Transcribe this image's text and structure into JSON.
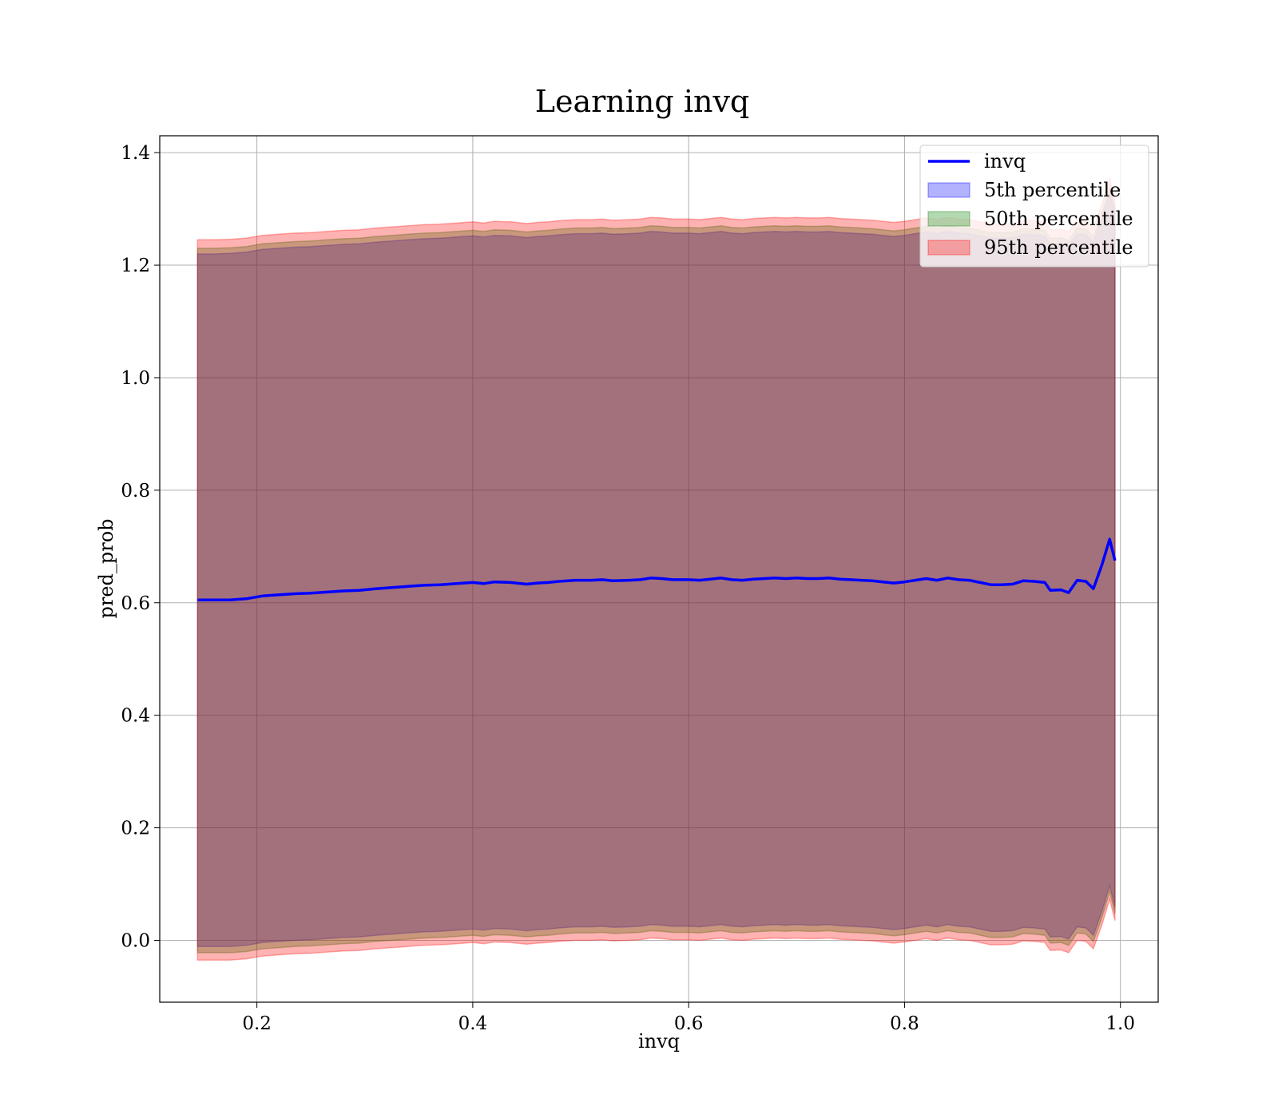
{
  "chart_data": {
    "type": "area",
    "title": "Learning invq",
    "xlabel": "invq",
    "ylabel": "pred_prob",
    "xlim": [
      0.11,
      1.035
    ],
    "ylim": [
      -0.11,
      1.43
    ],
    "grid": true,
    "legend_position": "top-right",
    "x_ticks": [
      {
        "value": 0.2,
        "label": "0.2"
      },
      {
        "value": 0.4,
        "label": "0.4"
      },
      {
        "value": 0.6,
        "label": "0.6"
      },
      {
        "value": 0.8,
        "label": "0.8"
      },
      {
        "value": 1.0,
        "label": "1.0"
      }
    ],
    "y_ticks": [
      {
        "value": 0.0,
        "label": "0.0"
      },
      {
        "value": 0.2,
        "label": "0.2"
      },
      {
        "value": 0.4,
        "label": "0.4"
      },
      {
        "value": 0.6,
        "label": "0.6"
      },
      {
        "value": 0.8,
        "label": "0.8"
      },
      {
        "value": 1.0,
        "label": "1.0"
      },
      {
        "value": 1.2,
        "label": "1.2"
      },
      {
        "value": 1.4,
        "label": "1.4"
      }
    ],
    "x": [
      0.145,
      0.16,
      0.175,
      0.19,
      0.205,
      0.22,
      0.235,
      0.25,
      0.265,
      0.28,
      0.295,
      0.31,
      0.325,
      0.34,
      0.355,
      0.37,
      0.385,
      0.4,
      0.41,
      0.42,
      0.435,
      0.45,
      0.46,
      0.47,
      0.48,
      0.495,
      0.51,
      0.52,
      0.53,
      0.545,
      0.555,
      0.565,
      0.575,
      0.585,
      0.6,
      0.61,
      0.62,
      0.63,
      0.64,
      0.65,
      0.66,
      0.67,
      0.68,
      0.69,
      0.7,
      0.71,
      0.72,
      0.73,
      0.74,
      0.75,
      0.76,
      0.77,
      0.78,
      0.79,
      0.8,
      0.81,
      0.82,
      0.83,
      0.84,
      0.85,
      0.86,
      0.87,
      0.88,
      0.89,
      0.9,
      0.91,
      0.92,
      0.93,
      0.935,
      0.945,
      0.952,
      0.96,
      0.968,
      0.975,
      0.983,
      0.99,
      0.995
    ],
    "series": [
      {
        "name": "invq",
        "color": "#0000ff",
        "role": "line",
        "values": [
          0.605,
          0.605,
          0.605,
          0.607,
          0.612,
          0.614,
          0.616,
          0.617,
          0.619,
          0.621,
          0.622,
          0.625,
          0.627,
          0.629,
          0.631,
          0.632,
          0.634,
          0.636,
          0.634,
          0.637,
          0.636,
          0.633,
          0.635,
          0.636,
          0.638,
          0.64,
          0.64,
          0.641,
          0.639,
          0.64,
          0.641,
          0.644,
          0.643,
          0.641,
          0.641,
          0.64,
          0.642,
          0.644,
          0.641,
          0.64,
          0.642,
          0.643,
          0.644,
          0.643,
          0.644,
          0.643,
          0.643,
          0.644,
          0.642,
          0.641,
          0.64,
          0.639,
          0.637,
          0.635,
          0.637,
          0.64,
          0.643,
          0.64,
          0.644,
          0.641,
          0.64,
          0.636,
          0.632,
          0.632,
          0.633,
          0.639,
          0.638,
          0.636,
          0.622,
          0.623,
          0.618,
          0.64,
          0.638,
          0.625,
          0.668,
          0.713,
          0.675
        ]
      },
      {
        "name": "5th percentile",
        "color": "#0000ff",
        "role": "band",
        "upper": [
          1.22,
          1.22,
          1.221,
          1.223,
          1.228,
          1.23,
          1.232,
          1.233,
          1.235,
          1.237,
          1.238,
          1.241,
          1.243,
          1.245,
          1.247,
          1.248,
          1.25,
          1.252,
          1.25,
          1.253,
          1.252,
          1.249,
          1.251,
          1.252,
          1.254,
          1.256,
          1.256,
          1.257,
          1.255,
          1.256,
          1.257,
          1.26,
          1.259,
          1.257,
          1.257,
          1.256,
          1.258,
          1.26,
          1.257,
          1.256,
          1.258,
          1.259,
          1.26,
          1.259,
          1.26,
          1.259,
          1.259,
          1.26,
          1.258,
          1.257,
          1.256,
          1.255,
          1.253,
          1.251,
          1.253,
          1.256,
          1.259,
          1.256,
          1.26,
          1.257,
          1.256,
          1.252,
          1.248,
          1.248,
          1.249,
          1.255,
          1.254,
          1.252,
          1.238,
          1.239,
          1.234,
          1.256,
          1.254,
          1.241,
          1.284,
          1.329,
          1.291
        ],
        "lower": [
          -0.011,
          -0.011,
          -0.011,
          -0.009,
          -0.004,
          -0.002,
          0.0,
          0.001,
          0.003,
          0.005,
          0.006,
          0.009,
          0.011,
          0.013,
          0.015,
          0.016,
          0.018,
          0.02,
          0.018,
          0.021,
          0.02,
          0.017,
          0.019,
          0.02,
          0.022,
          0.024,
          0.024,
          0.025,
          0.023,
          0.024,
          0.025,
          0.028,
          0.027,
          0.025,
          0.025,
          0.024,
          0.026,
          0.028,
          0.025,
          0.024,
          0.026,
          0.027,
          0.028,
          0.027,
          0.028,
          0.027,
          0.027,
          0.028,
          0.026,
          0.025,
          0.024,
          0.023,
          0.021,
          0.019,
          0.021,
          0.024,
          0.027,
          0.024,
          0.028,
          0.025,
          0.024,
          0.02,
          0.016,
          0.016,
          0.017,
          0.023,
          0.022,
          0.02,
          0.006,
          0.007,
          0.002,
          0.024,
          0.022,
          0.009,
          0.052,
          0.097,
          0.059
        ]
      },
      {
        "name": "50th percentile",
        "color": "#008000",
        "role": "band",
        "upper": [
          1.23,
          1.23,
          1.231,
          1.233,
          1.238,
          1.24,
          1.242,
          1.243,
          1.245,
          1.247,
          1.248,
          1.251,
          1.253,
          1.255,
          1.257,
          1.258,
          1.26,
          1.262,
          1.26,
          1.263,
          1.262,
          1.259,
          1.261,
          1.262,
          1.264,
          1.266,
          1.266,
          1.267,
          1.265,
          1.266,
          1.267,
          1.27,
          1.269,
          1.267,
          1.267,
          1.266,
          1.268,
          1.27,
          1.267,
          1.266,
          1.268,
          1.269,
          1.27,
          1.269,
          1.27,
          1.269,
          1.269,
          1.27,
          1.268,
          1.267,
          1.266,
          1.265,
          1.263,
          1.261,
          1.263,
          1.266,
          1.269,
          1.266,
          1.27,
          1.267,
          1.266,
          1.262,
          1.258,
          1.258,
          1.259,
          1.265,
          1.264,
          1.262,
          1.248,
          1.249,
          1.244,
          1.266,
          1.264,
          1.251,
          1.294,
          1.339,
          1.301
        ],
        "lower": [
          -0.022,
          -0.022,
          -0.022,
          -0.02,
          -0.015,
          -0.013,
          -0.011,
          -0.01,
          -0.008,
          -0.006,
          -0.005,
          -0.002,
          0.0,
          0.002,
          0.004,
          0.005,
          0.007,
          0.009,
          0.007,
          0.01,
          0.009,
          0.006,
          0.008,
          0.009,
          0.011,
          0.013,
          0.013,
          0.014,
          0.012,
          0.013,
          0.014,
          0.017,
          0.016,
          0.014,
          0.014,
          0.013,
          0.015,
          0.017,
          0.014,
          0.013,
          0.015,
          0.016,
          0.017,
          0.016,
          0.017,
          0.016,
          0.016,
          0.017,
          0.015,
          0.014,
          0.013,
          0.012,
          0.01,
          0.008,
          0.01,
          0.013,
          0.016,
          0.013,
          0.017,
          0.014,
          0.013,
          0.009,
          0.005,
          0.005,
          0.006,
          0.012,
          0.011,
          0.009,
          -0.005,
          -0.004,
          -0.009,
          0.013,
          0.011,
          -0.002,
          0.041,
          0.086,
          0.048
        ]
      },
      {
        "name": "95th percentile",
        "color": "#ff0000",
        "role": "band",
        "upper": [
          1.245,
          1.245,
          1.246,
          1.248,
          1.253,
          1.255,
          1.257,
          1.258,
          1.26,
          1.262,
          1.263,
          1.266,
          1.268,
          1.27,
          1.272,
          1.273,
          1.275,
          1.277,
          1.275,
          1.278,
          1.277,
          1.274,
          1.276,
          1.277,
          1.279,
          1.281,
          1.281,
          1.282,
          1.28,
          1.281,
          1.282,
          1.285,
          1.284,
          1.282,
          1.282,
          1.281,
          1.283,
          1.285,
          1.282,
          1.281,
          1.283,
          1.284,
          1.285,
          1.284,
          1.285,
          1.284,
          1.284,
          1.285,
          1.283,
          1.282,
          1.281,
          1.28,
          1.278,
          1.276,
          1.278,
          1.281,
          1.284,
          1.281,
          1.285,
          1.282,
          1.281,
          1.277,
          1.273,
          1.273,
          1.274,
          1.28,
          1.279,
          1.277,
          1.263,
          1.264,
          1.259,
          1.281,
          1.279,
          1.266,
          1.309,
          1.354,
          1.316
        ],
        "lower": [
          -0.035,
          -0.035,
          -0.035,
          -0.033,
          -0.028,
          -0.026,
          -0.024,
          -0.023,
          -0.021,
          -0.019,
          -0.018,
          -0.015,
          -0.013,
          -0.011,
          -0.009,
          -0.008,
          -0.006,
          -0.004,
          -0.006,
          -0.003,
          -0.004,
          -0.007,
          -0.005,
          -0.004,
          -0.002,
          0.0,
          0.0,
          0.001,
          -0.001,
          0.0,
          0.001,
          0.004,
          0.003,
          0.001,
          0.001,
          0.0,
          0.002,
          0.004,
          0.001,
          0.0,
          0.002,
          0.003,
          0.004,
          0.003,
          0.004,
          0.003,
          0.003,
          0.004,
          0.002,
          0.001,
          0.0,
          -0.001,
          -0.003,
          -0.005,
          -0.003,
          0.0,
          0.003,
          0.0,
          0.004,
          0.001,
          0.0,
          -0.004,
          -0.008,
          -0.008,
          -0.007,
          -0.001,
          -0.002,
          -0.004,
          -0.018,
          -0.017,
          -0.022,
          0.0,
          -0.002,
          -0.015,
          0.028,
          0.073,
          0.035
        ]
      }
    ]
  }
}
